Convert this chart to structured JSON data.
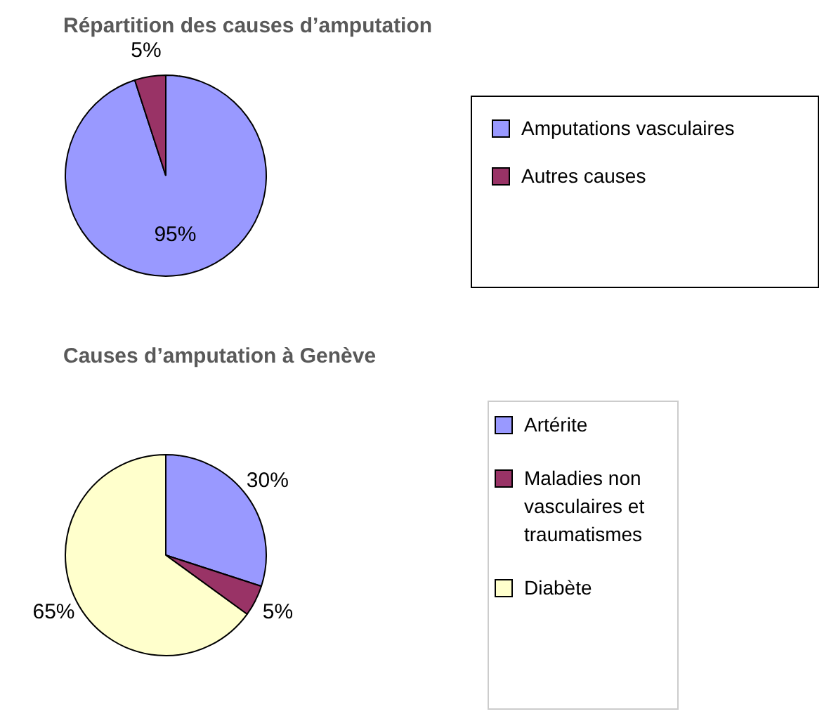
{
  "chart_data": [
    {
      "type": "pie",
      "title": "Répartition des causes d’amputation",
      "categories": [
        "Amputations vasculaires",
        "Autres causes"
      ],
      "values": [
        95,
        5
      ],
      "value_labels": [
        "95%",
        "5%"
      ],
      "colors": [
        "#9999ff",
        "#993366"
      ],
      "legend": "right"
    },
    {
      "type": "pie",
      "title": "Causes d’amputation à Genève",
      "categories": [
        "Artérite",
        "Maladies non vasculaires et traumatismes",
        "Diabète"
      ],
      "values": [
        30,
        5,
        65
      ],
      "value_labels": [
        "30%",
        "5%",
        "65%"
      ],
      "colors": [
        "#9999ff",
        "#993366",
        "#ffffcc"
      ],
      "legend": "right"
    }
  ]
}
